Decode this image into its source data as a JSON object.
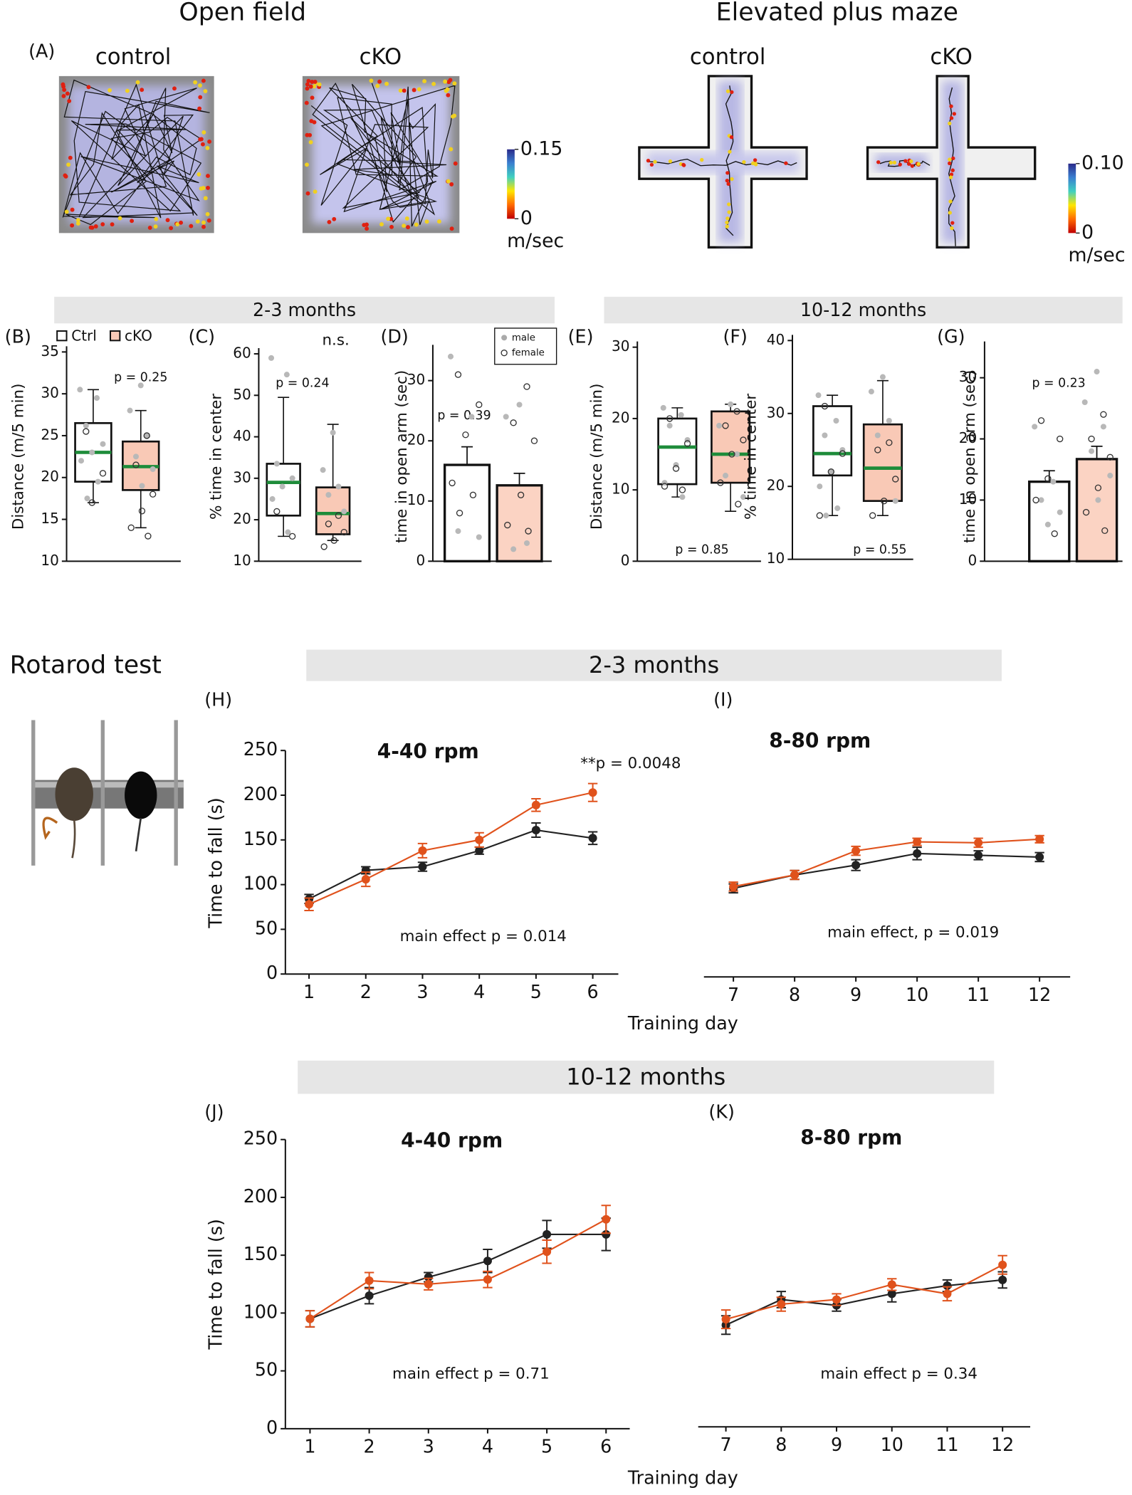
{
  "header": {
    "open_field": "Open field",
    "epm": "Elevated plus maze",
    "rotarod": "Rotarod test"
  },
  "panel_a": {
    "label": "(A)",
    "of_control": "control",
    "of_cko": "cKO",
    "epm_control": "control",
    "epm_cko": "cKO",
    "colorbar1": {
      "ticks": [
        0.15,
        0
      ],
      "unit": "m/sec"
    },
    "colorbar2": {
      "ticks": [
        {
          "value": 0.1,
          "label": "0.10"
        },
        0
      ],
      "unit": "m/sec"
    }
  },
  "age_bands": [
    "2-3 months",
    "10-12 months",
    "2-3 months",
    "10-12 months"
  ],
  "legend": {
    "ctrl": "Ctrl",
    "cko": "cKO",
    "male": "male",
    "female": "female"
  },
  "chart_data": [
    {
      "type": "box",
      "label": "(B)",
      "ylabel": "Distance (m/5 min)",
      "ylim": [
        10,
        35
      ],
      "yticks": [
        10,
        15,
        20,
        25,
        30,
        35
      ],
      "annotations": [
        "p = 0.25"
      ],
      "series": [
        {
          "color": "#ffffff",
          "whisker_low": 17,
          "q1": 19.5,
          "median": 23,
          "q3": 26.5,
          "whisker_high": 30.5,
          "male_points": [
            30.5,
            29.5,
            26.2,
            24,
            23,
            22,
            19.5,
            17.5
          ],
          "female_points": [
            25.5,
            20.5,
            17
          ]
        },
        {
          "color": "#f9c9b6",
          "whisker_low": 14,
          "q1": 18.5,
          "median": 21.3,
          "q3": 24.3,
          "whisker_high": 28,
          "male_points": [
            31,
            28,
            25,
            22.5,
            21,
            19
          ],
          "female_points": [
            25,
            21.5,
            18,
            16,
            14,
            13
          ]
        }
      ]
    },
    {
      "type": "box",
      "label": "(C)",
      "ylabel": "% time in center",
      "ylim": [
        10,
        60
      ],
      "yticks": [
        10,
        20,
        30,
        40,
        50,
        60
      ],
      "annotations": [
        "n.s.",
        "p = 0.24"
      ],
      "series": [
        {
          "color": "#ffffff",
          "whisker_low": 16,
          "q1": 21,
          "median": 29,
          "q3": 33.5,
          "whisker_high": 49.5,
          "male_points": [
            59,
            55,
            33.5,
            30,
            28,
            25,
            17
          ],
          "female_points": [
            22,
            16
          ]
        },
        {
          "color": "#f9c9b6",
          "whisker_low": 15,
          "q1": 16.5,
          "median": 21.5,
          "q3": 27.8,
          "whisker_high": 43,
          "male_points": [
            41,
            32,
            28,
            26,
            22
          ],
          "female_points": [
            21,
            19,
            17,
            15,
            13.5
          ]
        }
      ]
    },
    {
      "type": "bar",
      "label": "(D)",
      "ylabel": "time in open arm (sec)",
      "ylim": [
        0,
        35
      ],
      "yticks": [
        0,
        10,
        20,
        30
      ],
      "annotations": [
        "p = 0.39"
      ],
      "series": [
        {
          "color": "#ffffff",
          "value": 16,
          "error": 3,
          "male_points": [
            34,
            24,
            5,
            4
          ],
          "female_points": [
            31,
            26,
            21,
            13,
            11,
            8
          ]
        },
        {
          "color": "#fbd3c3",
          "value": 12.6,
          "error": 2,
          "male_points": [
            26,
            24,
            3,
            2
          ],
          "female_points": [
            29,
            23,
            20,
            11,
            6,
            5
          ]
        }
      ]
    },
    {
      "type": "box",
      "label": "(E)",
      "ylabel": "Distance (m/5 min)",
      "ylim": [
        0,
        30
      ],
      "yticks": [
        0,
        10,
        20,
        30
      ],
      "annotations": [
        "p = 0.85"
      ],
      "series": [
        {
          "color": "#ffffff",
          "whisker_low": 9,
          "q1": 10.8,
          "median": 16,
          "q3": 20,
          "whisker_high": 21.5,
          "male_points": [
            21.5,
            20.5,
            19,
            17,
            13.5,
            11,
            9
          ],
          "female_points": [
            20,
            16.5,
            13,
            10.5,
            10
          ]
        },
        {
          "color": "#f9c9b6",
          "whisker_low": 7,
          "q1": 11,
          "median": 15,
          "q3": 21,
          "whisker_high": 22,
          "male_points": [
            22,
            19,
            15,
            12,
            9
          ],
          "female_points": [
            21,
            19,
            17,
            15,
            11,
            8
          ]
        }
      ]
    },
    {
      "type": "box",
      "label": "(F)",
      "ylabel": "% time in center",
      "ylim": [
        10,
        40
      ],
      "yticks": [
        10,
        20,
        30,
        40
      ],
      "annotations": [
        "p = 0.55"
      ],
      "series": [
        {
          "color": "#ffffff",
          "whisker_low": 16,
          "q1": 21.5,
          "median": 24.5,
          "q3": 31,
          "whisker_high": 32.5,
          "male_points": [
            32.5,
            29,
            27,
            25,
            22,
            20,
            17,
            16
          ],
          "female_points": [
            31,
            24.5,
            22,
            16
          ]
        },
        {
          "color": "#f9c9b6",
          "whisker_low": 16,
          "q1": 18,
          "median": 22.5,
          "q3": 28.5,
          "whisker_high": 34.5,
          "male_points": [
            35,
            33,
            29,
            27,
            18
          ],
          "female_points": [
            26,
            25,
            21,
            18,
            16
          ]
        }
      ]
    },
    {
      "type": "bar",
      "label": "(G)",
      "ylabel": "time in open arm (sec)",
      "ylim": [
        0,
        35
      ],
      "yticks": [
        0,
        10,
        20,
        30
      ],
      "annotations": [
        "p = 0.23"
      ],
      "series": [
        {
          "color": "#ffffff",
          "value": 13,
          "error": 1.8,
          "male_points": [
            22,
            13,
            10,
            8,
            6
          ],
          "female_points": [
            23,
            20,
            13.5,
            10,
            4.5
          ]
        },
        {
          "color": "#fbd3c3",
          "value": 16.7,
          "error": 2.1,
          "male_points": [
            31,
            26,
            22,
            18,
            14,
            10
          ],
          "female_points": [
            24,
            20,
            17,
            12,
            8,
            5
          ]
        }
      ]
    },
    {
      "type": "line",
      "label": "(H)",
      "title": "4-40 rpm",
      "ylabel": "Time to fall  (s)",
      "xlabel": "Training day",
      "x": [
        1,
        2,
        3,
        4,
        5,
        6
      ],
      "xlim": [
        0.6,
        6.4
      ],
      "ylim": [
        0,
        250
      ],
      "yticks": [
        0,
        50,
        100,
        150,
        200,
        250
      ],
      "annotations": [
        "main effect p = 0.014",
        "**p = 0.0048"
      ],
      "series": [
        {
          "color": "#222222",
          "values": [
            84,
            116,
            120,
            138,
            161,
            152
          ],
          "errors": [
            5,
            4,
            5,
            4,
            8,
            7
          ]
        },
        {
          "color": "#e0521c",
          "values": [
            78,
            106,
            138,
            150,
            189,
            203
          ],
          "errors": [
            7,
            8,
            8,
            8,
            7,
            10
          ]
        }
      ]
    },
    {
      "type": "line",
      "label": "(I)",
      "title": "8-80 rpm",
      "x": [
        7,
        8,
        9,
        10,
        11,
        12
      ],
      "xlim": [
        6.55,
        12.5
      ],
      "ylim": [
        0,
        250
      ],
      "annotations": [
        "main effect, p = 0.019"
      ],
      "series": [
        {
          "color": "#222222",
          "values": [
            99,
            114,
            125,
            138,
            136,
            134
          ],
          "errors": [
            5,
            5,
            6,
            7,
            5,
            5
          ]
        },
        {
          "color": "#e0521c",
          "values": [
            101,
            114,
            141,
            151,
            150,
            154
          ],
          "errors": [
            5,
            5,
            5,
            4,
            5,
            4
          ]
        }
      ]
    },
    {
      "type": "line",
      "label": "(J)",
      "title": "4-40 rpm",
      "ylabel": "Time to fall  (s)",
      "xlabel": "Training day",
      "x": [
        1,
        2,
        3,
        4,
        5,
        6
      ],
      "xlim": [
        0.6,
        6.4
      ],
      "ylim": [
        0,
        250
      ],
      "yticks": [
        0,
        50,
        100,
        150,
        200,
        250
      ],
      "annotations": [
        "main effect p = 0.71"
      ],
      "series": [
        {
          "color": "#222222",
          "values": [
            95,
            115,
            131,
            145,
            168,
            168
          ],
          "errors": [
            7,
            7,
            4,
            10,
            12,
            14
          ]
        },
        {
          "color": "#e0521c",
          "values": [
            95,
            128,
            125,
            129,
            153,
            181
          ],
          "errors": [
            7,
            7,
            5,
            7,
            10,
            12
          ]
        }
      ]
    },
    {
      "type": "line",
      "label": "(K)",
      "title": "8-80 rpm",
      "x": [
        7,
        8,
        9,
        10,
        11,
        12
      ],
      "xlim": [
        6.5,
        12.5
      ],
      "ylim": [
        0,
        250
      ],
      "annotations": [
        "main effect p = 0.34"
      ],
      "series": [
        {
          "color": "#222222",
          "values": [
            88,
            110,
            105,
            115,
            122,
            127
          ],
          "errors": [
            8,
            7,
            5,
            7,
            5,
            7
          ]
        },
        {
          "color": "#e0521c",
          "values": [
            93,
            106,
            110,
            123,
            115,
            140
          ],
          "errors": [
            8,
            6,
            5,
            5,
            6,
            8
          ]
        }
      ]
    }
  ]
}
